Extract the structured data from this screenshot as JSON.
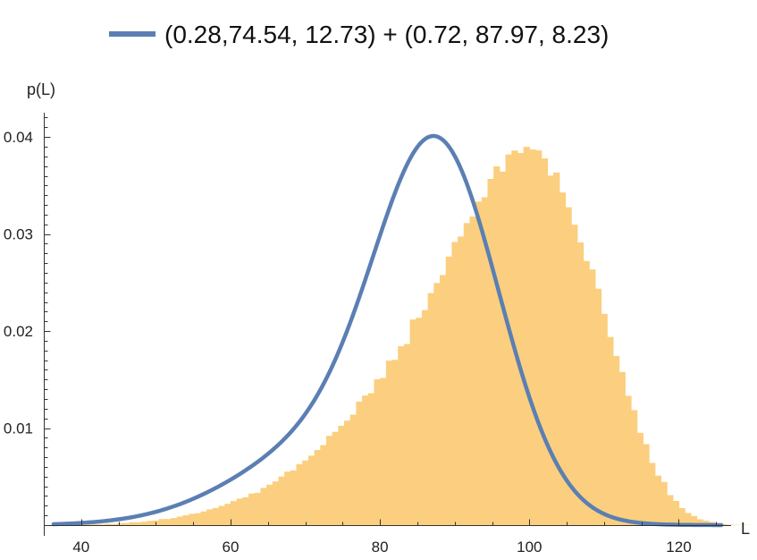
{
  "chart_data": {
    "type": "histogram",
    "legend": {
      "label": "(0.28,74.54, 12.73) + (0.72, 87.97, 8.23)",
      "position": "top-center",
      "color": "#5b7fb3"
    },
    "xlabel": "L",
    "ylabel": "p(L)",
    "xlim": [
      35,
      127
    ],
    "ylim": [
      0,
      0.0425
    ],
    "x_ticks": [
      40,
      60,
      80,
      100,
      120
    ],
    "x_tick_labels": [
      "40",
      "60",
      "80",
      "100",
      "120"
    ],
    "y_ticks": [
      0.01,
      0.02,
      0.03,
      0.04
    ],
    "y_tick_labels": [
      "0.01",
      "0.02",
      "0.03",
      "0.04"
    ],
    "grid": false,
    "histogram": {
      "color": "#fbcf7f",
      "bin_start": 36,
      "bin_width": 0.8,
      "values": [
        0.0,
        0.0,
        1e-05,
        2e-05,
        3e-05,
        3e-05,
        6e-05,
        7e-05,
        7e-05,
        0.00013,
        0.00011,
        0.00018,
        0.00021,
        0.0003,
        0.00029,
        0.00035,
        0.00044,
        0.00047,
        0.00062,
        0.00063,
        0.00073,
        0.00088,
        0.00101,
        0.00116,
        0.00123,
        0.00141,
        0.00163,
        0.00176,
        0.00198,
        0.0022,
        0.00248,
        0.00273,
        0.00287,
        0.00325,
        0.00333,
        0.00383,
        0.00417,
        0.0045,
        0.00501,
        0.00551,
        0.00564,
        0.00629,
        0.00666,
        0.00716,
        0.00774,
        0.00824,
        0.0092,
        0.00961,
        0.01024,
        0.01077,
        0.01138,
        0.01272,
        0.01335,
        0.01359,
        0.01503,
        0.01516,
        0.01695,
        0.01703,
        0.01843,
        0.01866,
        0.02119,
        0.02137,
        0.02216,
        0.02391,
        0.02495,
        0.02577,
        0.02767,
        0.02918,
        0.02974,
        0.03113,
        0.0318,
        0.03334,
        0.03379,
        0.03568,
        0.03697,
        0.03642,
        0.0382,
        0.0386,
        0.03835,
        0.03898,
        0.03871,
        0.03862,
        0.03779,
        0.03602,
        0.03634,
        0.03428,
        0.03276,
        0.03096,
        0.02914,
        0.02722,
        0.02635,
        0.02436,
        0.02177,
        0.01939,
        0.01742,
        0.01578,
        0.01332,
        0.01185,
        0.00951,
        0.00834,
        0.00641,
        0.0051,
        0.00445,
        0.00309,
        0.00249,
        0.00175,
        0.00125,
        0.00094,
        0.0006,
        0.00046,
        0.00031,
        0.00015,
        0.00011,
        5e-05,
        4e-05,
        2e-05,
        2e-05,
        0.0
      ]
    },
    "series": [
      {
        "kind": "mixture-curve",
        "color": "#5b7fb3",
        "components": [
          {
            "weight": 0.28,
            "mean": 74.54,
            "sd": 12.73
          },
          {
            "weight": 0.72,
            "mean": 87.97,
            "sd": 8.23
          }
        ],
        "x_range": [
          36.3,
          125.7
        ]
      }
    ]
  }
}
